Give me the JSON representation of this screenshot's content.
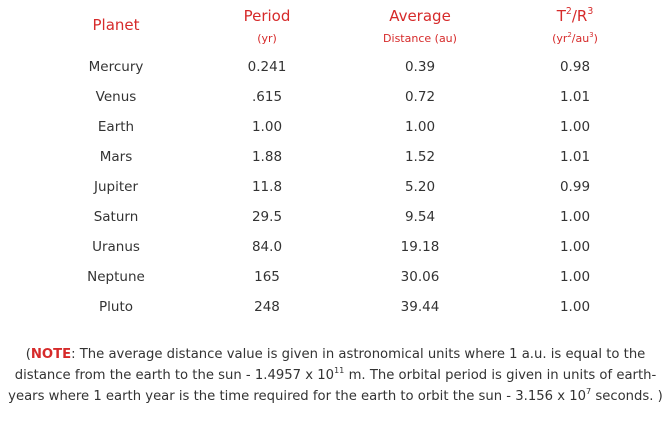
{
  "header": {
    "planet": "Planet",
    "period": "Period",
    "period_unit": "(yr)",
    "average": "Average",
    "average_unit": "Distance (au)",
    "ratio_t": "T",
    "ratio_t_exp": "2",
    "ratio_slash": "/R",
    "ratio_r_exp": "3",
    "ratio_unit_a": "(yr",
    "ratio_unit_a_exp": "2",
    "ratio_unit_b": "/au",
    "ratio_unit_b_exp": "3",
    "ratio_unit_c": ")"
  },
  "rows": [
    {
      "planet": "Mercury",
      "period": "0.241",
      "distance": "0.39",
      "ratio": "0.98"
    },
    {
      "planet": "Venus",
      "period": ".615",
      "distance": "0.72",
      "ratio": "1.01"
    },
    {
      "planet": "Earth",
      "period": "1.00",
      "distance": "1.00",
      "ratio": "1.00"
    },
    {
      "planet": "Mars",
      "period": "1.88",
      "distance": "1.52",
      "ratio": "1.01"
    },
    {
      "planet": "Jupiter",
      "period": "11.8",
      "distance": "5.20",
      "ratio": "0.99"
    },
    {
      "planet": "Saturn",
      "period": "29.5",
      "distance": "9.54",
      "ratio": "1.00"
    },
    {
      "planet": "Uranus",
      "period": "84.0",
      "distance": "19.18",
      "ratio": "1.00"
    },
    {
      "planet": "Neptune",
      "period": "165",
      "distance": "30.06",
      "ratio": "1.00"
    },
    {
      "planet": "Pluto",
      "period": "248",
      "distance": "39.44",
      "ratio": "1.00"
    }
  ],
  "note": {
    "open": "(",
    "label": "NOTE",
    "text_1": ": The average distance value is given in astronomical units where 1 a.u. is equal to the distance from the earth to the sun - 1.4957 x 10",
    "exp_1": "11",
    "text_2": " m. The orbital period is given in units of earth-years where 1 earth year is the time required for the earth to orbit the sun - 3.156 x 10",
    "exp_2": "7",
    "text_3": " seconds. )"
  },
  "colors": {
    "accent": "#d62a2a",
    "text": "#333333",
    "background": "#ffffff"
  }
}
